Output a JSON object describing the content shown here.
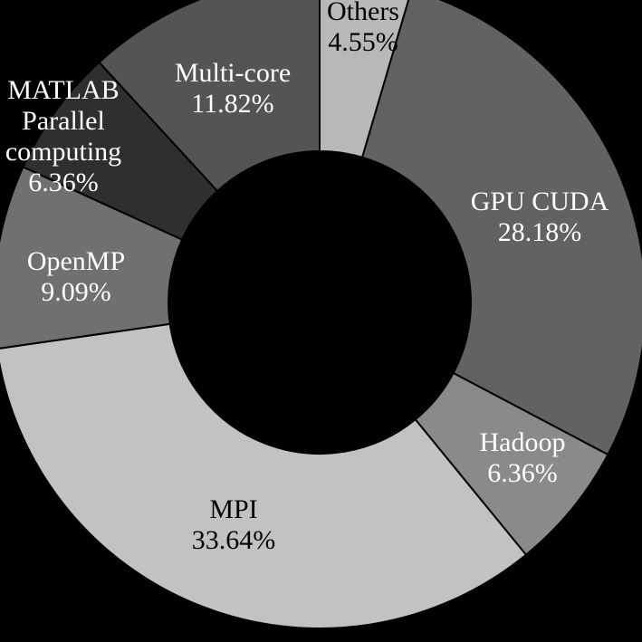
{
  "chart_data": {
    "type": "pie",
    "variant": "donut",
    "start": "top",
    "direction": "clockwise",
    "legend": "none",
    "slices": [
      {
        "label": [
          "Others"
        ],
        "value": 4.55,
        "value_label": "4.55%",
        "color": "#b8b8b8",
        "text_color": "#000000"
      },
      {
        "label": [
          "GPU CUDA"
        ],
        "value": 28.18,
        "value_label": "28.18%",
        "color": "#626262",
        "text_color": "#ffffff"
      },
      {
        "label": [
          "Hadoop"
        ],
        "value": 6.36,
        "value_label": "6.36%",
        "color": "#8a8a8a",
        "text_color": "#ffffff"
      },
      {
        "label": [
          "MPI"
        ],
        "value": 33.64,
        "value_label": "33.64%",
        "color": "#c2c2c2",
        "text_color": "#000000"
      },
      {
        "label": [
          "OpenMP"
        ],
        "value": 9.09,
        "value_label": "9.09%",
        "color": "#707070",
        "text_color": "#ffffff"
      },
      {
        "label": [
          "MATLAB",
          "Parallel",
          "computing"
        ],
        "value": 6.36,
        "value_label": "6.36%",
        "color": "#2f2f2f",
        "text_color": "#ffffff"
      },
      {
        "label": [
          "Multi-core"
        ],
        "value": 11.82,
        "value_label": "11.82%",
        "color": "#545454",
        "text_color": "#ffffff"
      }
    ]
  }
}
